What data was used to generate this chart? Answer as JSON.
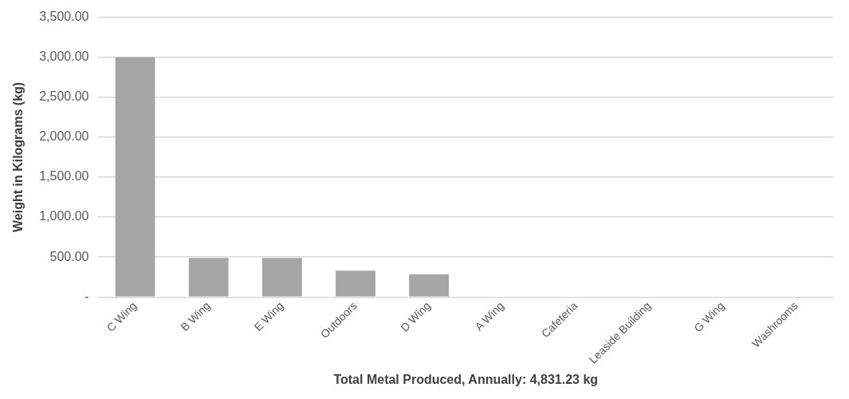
{
  "chart_data": {
    "type": "bar",
    "xlabel": "Total Metal Produced, Annually: 4,831.23 kg",
    "ylabel": "Weight in Kilograms (kg)",
    "categories": [
      "C Wing",
      "B Wing",
      "E Wing",
      "Outdoors",
      "D Wing",
      "A Wing",
      "Cafeteria",
      "Leaside Building",
      "G Wing",
      "Washrooms"
    ],
    "values": [
      3000,
      490,
      490,
      330,
      285,
      0,
      0,
      0,
      0,
      0
    ],
    "color": "#a5a5a5",
    "ylim": [
      0,
      3500
    ],
    "yticks": [
      {
        "value": 0,
        "label": "-"
      },
      {
        "value": 500,
        "label": "500.00"
      },
      {
        "value": 1000,
        "label": "1,000.00"
      },
      {
        "value": 1500,
        "label": "1,500.00"
      },
      {
        "value": 2000,
        "label": "2,000.00"
      },
      {
        "value": 2500,
        "label": "2,500.00"
      },
      {
        "value": 3000,
        "label": "3,000.00"
      },
      {
        "value": 3500,
        "label": "3,500.00"
      }
    ],
    "grid": "y",
    "legend": false
  }
}
